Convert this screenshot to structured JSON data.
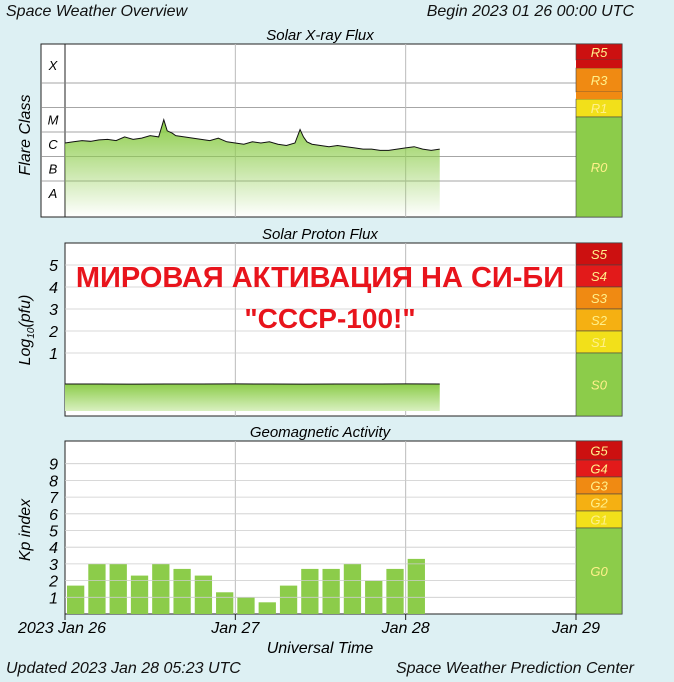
{
  "header": {
    "left": "Space Weather Overview",
    "right": "Begin 2023 01 26 00:00 UTC"
  },
  "footer": {
    "left": "Updated 2023 Jan 28 05:23 UTC",
    "right": "Space Weather Prediction Center"
  },
  "overlay": {
    "line1": "МИРОВАЯ АКТИВАЦИЯ НА СИ-БИ",
    "line2": "\"СССР-100!\"",
    "color": "#e8141c"
  },
  "time_axis": {
    "ticks": [
      "2023 Jan 26",
      "Jan 27",
      "Jan 28",
      "Jan 29"
    ],
    "label": "Universal Time"
  },
  "colors": {
    "scale_green": "#8ccc4a",
    "scale_yellow": "#f2e01a",
    "scale_orange": "#f08a12",
    "scale_red": "#e21a1a",
    "scale_dark_red": "#cc1010",
    "bar_green": "#8ccc4a",
    "label_text": "#fff08a"
  },
  "xray": {
    "title": "Solar X-ray Flux",
    "ylabel": "Flare Class",
    "classes": [
      "X",
      "M",
      "C",
      "B",
      "A"
    ],
    "scales": [
      {
        "label": "R5",
        "level": "dark_red"
      },
      {
        "label": "R3",
        "level": "orange"
      },
      {
        "label": "R1",
        "level": "yellow"
      },
      {
        "label": "R0",
        "level": "green"
      }
    ]
  },
  "proton": {
    "title": "Solar Proton Flux",
    "ylabel_main": "Log",
    "ylabel_sub": "10",
    "ylabel_unit": "(pfu)",
    "ticks": [
      "5",
      "4",
      "3",
      "2",
      "1"
    ],
    "scales": [
      {
        "label": "S5",
        "level": "dark_red"
      },
      {
        "label": "S4",
        "level": "red"
      },
      {
        "label": "S3",
        "level": "orange"
      },
      {
        "label": "S2",
        "level": "orange_yellow"
      },
      {
        "label": "S1",
        "level": "yellow"
      },
      {
        "label": "S0",
        "level": "green"
      }
    ]
  },
  "geomag": {
    "title": "Geomagnetic Activity",
    "ylabel": "Kp index",
    "ticks": [
      "9",
      "8",
      "7",
      "6",
      "5",
      "4",
      "3",
      "2",
      "1"
    ],
    "scales": [
      {
        "label": "G5",
        "level": "dark_red"
      },
      {
        "label": "G4",
        "level": "red"
      },
      {
        "label": "G3",
        "level": "orange"
      },
      {
        "label": "G2",
        "level": "orange_yellow"
      },
      {
        "label": "G1",
        "level": "yellow"
      },
      {
        "label": "G0",
        "level": "green"
      }
    ]
  },
  "chart_data": [
    {
      "type": "area",
      "title": "Solar X-ray Flux",
      "ylabel": "Flare Class",
      "y_categories": [
        "A",
        "B",
        "C",
        "M",
        "X"
      ],
      "x_unit": "days since 2023 Jan 26 00:00 UTC",
      "xlim": [
        0,
        3
      ],
      "series": [
        {
          "x": [
            0.0,
            0.05,
            0.1,
            0.15,
            0.2,
            0.25,
            0.3,
            0.35,
            0.4,
            0.45,
            0.5,
            0.55,
            0.58,
            0.6,
            0.63,
            0.65,
            0.7,
            0.75,
            0.8,
            0.85,
            0.9,
            0.95,
            1.0,
            1.05,
            1.1,
            1.15,
            1.2,
            1.25,
            1.3,
            1.35,
            1.38,
            1.4,
            1.42,
            1.45,
            1.5,
            1.55,
            1.6,
            1.65,
            1.7,
            1.75,
            1.8,
            1.85,
            1.9,
            1.95,
            2.0,
            2.05,
            2.1,
            2.15,
            2.2
          ],
          "class_level": [
            2.55,
            2.6,
            2.65,
            2.62,
            2.68,
            2.7,
            2.65,
            2.8,
            2.7,
            2.75,
            2.85,
            2.8,
            3.5,
            3.05,
            2.95,
            2.85,
            2.8,
            2.75,
            2.7,
            2.65,
            2.75,
            2.6,
            2.55,
            2.5,
            2.6,
            2.55,
            2.6,
            2.5,
            2.45,
            2.55,
            3.1,
            2.8,
            2.6,
            2.5,
            2.45,
            2.4,
            2.45,
            2.4,
            2.35,
            2.3,
            2.3,
            2.25,
            2.25,
            2.3,
            2.35,
            2.4,
            2.3,
            2.25,
            2.3
          ]
        }
      ]
    },
    {
      "type": "area",
      "title": "Solar Proton Flux",
      "ylabel": "Log10(pfu)",
      "ylim": [
        -1,
        6
      ],
      "x_unit": "days since 2023 Jan 26 00:00 UTC",
      "xlim": [
        0,
        3
      ],
      "series": [
        {
          "x": [
            0.0,
            0.2,
            0.4,
            0.6,
            0.8,
            1.0,
            1.2,
            1.4,
            1.6,
            1.8,
            2.0,
            2.2
          ],
          "y": [
            -0.35,
            -0.35,
            -0.34,
            -0.35,
            -0.35,
            -0.36,
            -0.35,
            -0.34,
            -0.35,
            -0.35,
            -0.36,
            -0.35
          ]
        }
      ]
    },
    {
      "type": "bar",
      "title": "Geomagnetic Activity",
      "ylabel": "Kp index",
      "ylim": [
        0,
        10
      ],
      "xlabel": "Universal Time",
      "x_unit": "3-hour intervals from 2023 Jan 26 00:00 UTC",
      "values": [
        1.7,
        3.0,
        3.0,
        2.3,
        3.0,
        2.7,
        2.3,
        1.3,
        1.0,
        0.7,
        1.7,
        2.7,
        2.7,
        3.0,
        2.0,
        2.7,
        3.3
      ]
    }
  ]
}
